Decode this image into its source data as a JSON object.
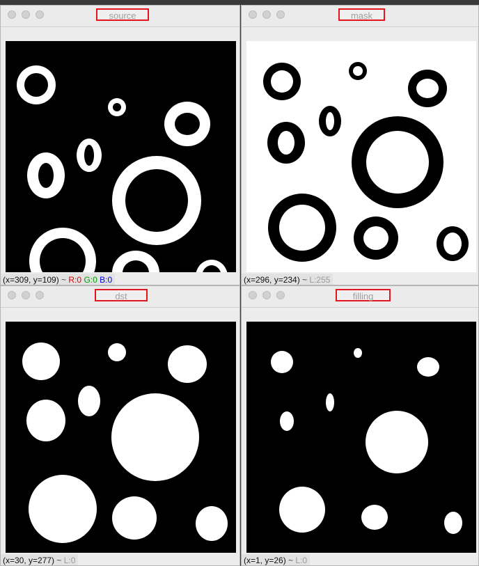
{
  "windows": {
    "source": {
      "title": "source",
      "status": {
        "coords": "(x=309, y=109)",
        "tilde": "~",
        "r": "R:0",
        "g": "G:0",
        "b": "B:0"
      }
    },
    "mask": {
      "title": "mask",
      "status": {
        "coords": "(x=296, y=234)",
        "tilde": "~",
        "l": "L:255"
      }
    },
    "dst": {
      "title": "dst",
      "status": {
        "coords": "(x=30, y=277)",
        "tilde": "~",
        "l": "L:0"
      }
    },
    "filling": {
      "title": "filling",
      "status": {
        "coords": "(x=1, y=26)",
        "tilde": "~",
        "l": "L:0"
      }
    }
  },
  "colors": {
    "title_highlight": "#e3141c",
    "r": "#e00000",
    "g": "#00a000",
    "b": "#0000e0"
  },
  "icons": [
    "close-icon",
    "minimize-icon",
    "zoom-icon"
  ]
}
